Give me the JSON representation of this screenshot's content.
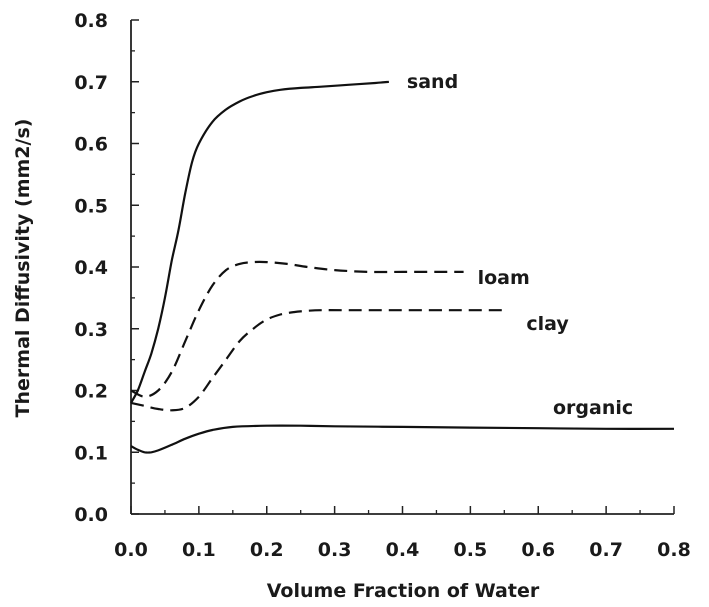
{
  "chart_data": {
    "type": "line",
    "title": "",
    "xlabel": "Volume Fraction of Water",
    "ylabel": "Thermal Diffusivity (mm2/s)",
    "xlim": [
      0,
      0.8
    ],
    "ylim": [
      0,
      0.8
    ],
    "x_ticks": [
      "0.0",
      "0.1",
      "0.2",
      "0.3",
      "0.4",
      "0.5",
      "0.6",
      "0.7",
      "0.8"
    ],
    "y_ticks": [
      "0.0",
      "0.1",
      "0.2",
      "0.3",
      "0.4",
      "0.5",
      "0.6",
      "0.7",
      "0.8"
    ],
    "grid": false,
    "legend": "none",
    "series": [
      {
        "name": "sand",
        "line_style": "solid",
        "x": [
          0.0,
          0.01,
          0.02,
          0.03,
          0.04,
          0.05,
          0.06,
          0.07,
          0.08,
          0.09,
          0.1,
          0.12,
          0.14,
          0.16,
          0.18,
          0.2,
          0.22,
          0.25,
          0.28,
          0.32,
          0.36,
          0.38
        ],
        "y": [
          0.18,
          0.2,
          0.23,
          0.26,
          0.3,
          0.35,
          0.41,
          0.46,
          0.52,
          0.57,
          0.6,
          0.635,
          0.655,
          0.668,
          0.677,
          0.683,
          0.687,
          0.69,
          0.692,
          0.695,
          0.698,
          0.7
        ]
      },
      {
        "name": "loam",
        "line_style": "dashed",
        "x": [
          0.0,
          0.02,
          0.04,
          0.06,
          0.08,
          0.1,
          0.12,
          0.14,
          0.16,
          0.18,
          0.2,
          0.23,
          0.26,
          0.3,
          0.35,
          0.4,
          0.45,
          0.49
        ],
        "y": [
          0.2,
          0.19,
          0.2,
          0.23,
          0.28,
          0.33,
          0.37,
          0.395,
          0.405,
          0.408,
          0.408,
          0.405,
          0.4,
          0.395,
          0.392,
          0.392,
          0.392,
          0.392
        ]
      },
      {
        "name": "clay",
        "line_style": "dashed",
        "x": [
          0.0,
          0.02,
          0.04,
          0.06,
          0.08,
          0.1,
          0.12,
          0.14,
          0.16,
          0.18,
          0.2,
          0.22,
          0.24,
          0.26,
          0.28,
          0.32,
          0.38,
          0.45,
          0.5,
          0.55
        ],
        "y": [
          0.18,
          0.175,
          0.17,
          0.168,
          0.172,
          0.19,
          0.22,
          0.25,
          0.28,
          0.3,
          0.315,
          0.323,
          0.327,
          0.329,
          0.33,
          0.33,
          0.33,
          0.33,
          0.33,
          0.33
        ]
      },
      {
        "name": "organic",
        "line_style": "solid",
        "x": [
          0.0,
          0.01,
          0.02,
          0.03,
          0.04,
          0.06,
          0.08,
          0.1,
          0.12,
          0.15,
          0.2,
          0.25,
          0.3,
          0.4,
          0.5,
          0.6,
          0.7,
          0.8
        ],
        "y": [
          0.11,
          0.104,
          0.1,
          0.1,
          0.103,
          0.112,
          0.122,
          0.13,
          0.136,
          0.141,
          0.143,
          0.143,
          0.142,
          0.141,
          0.14,
          0.139,
          0.138,
          0.138
        ]
      }
    ]
  }
}
